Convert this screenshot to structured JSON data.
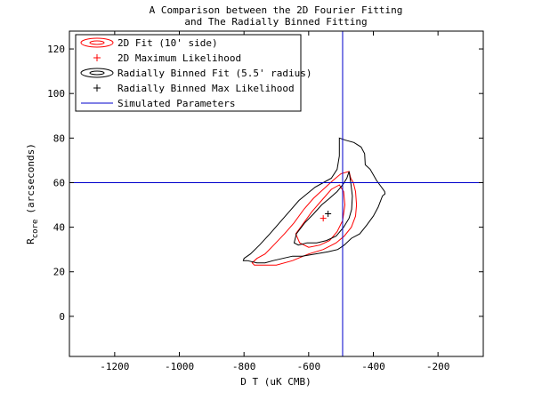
{
  "chart_data": {
    "type": "contour",
    "title": [
      "A Comparison between the 2D Fourier Fitting",
      "and The Radially Binned Fitting"
    ],
    "xlabel": "D T (uK CMB)",
    "ylabel_main": "R",
    "ylabel_sub": "core",
    "ylabel_tail": "(arcseconds)",
    "xlim": [
      -1340,
      -60
    ],
    "ylim": [
      -18,
      128
    ],
    "xticks": [
      -1200,
      -1000,
      -800,
      -600,
      -400,
      -200
    ],
    "yticks": [
      0,
      20,
      40,
      60,
      80,
      100,
      120
    ],
    "grid": false,
    "legend": {
      "placement": "top-left",
      "entries": [
        {
          "label": "2D Fit (10' side)",
          "kind": "ellipses",
          "color": "#ff0000"
        },
        {
          "label": "2D Maximum Likelihood",
          "kind": "plus",
          "color": "#ff0000"
        },
        {
          "label": "Radially Binned Fit (5.5' radius)",
          "kind": "ellipses",
          "color": "#000000"
        },
        {
          "label": "Radially Binned Max Likelihood",
          "kind": "plus",
          "color": "#000000"
        },
        {
          "label": "Simulated Parameters",
          "kind": "line",
          "color": "#0000cc"
        }
      ]
    },
    "simulated_parameters": {
      "dT": -495,
      "r_core": 60
    },
    "max_likelihood_2d": {
      "dT": -555,
      "r_core": 44
    },
    "max_likelihood_radial": {
      "dT": -540,
      "r_core": 46
    },
    "contours": [
      {
        "name": "2D Fit (10' side) outer",
        "color": "#ff0000",
        "points": [
          [
            -470,
            62
          ],
          [
            -475,
            65
          ],
          [
            -500,
            64
          ],
          [
            -525,
            61
          ],
          [
            -555,
            57
          ],
          [
            -585,
            53
          ],
          [
            -615,
            48
          ],
          [
            -645,
            42
          ],
          [
            -675,
            37
          ],
          [
            -708,
            32
          ],
          [
            -735,
            28
          ],
          [
            -760,
            26
          ],
          [
            -775,
            24
          ],
          [
            -768,
            23
          ],
          [
            -740,
            23
          ],
          [
            -700,
            23
          ],
          [
            -650,
            25
          ],
          [
            -600,
            28
          ],
          [
            -555,
            30
          ],
          [
            -515,
            33
          ],
          [
            -490,
            36
          ],
          [
            -468,
            40
          ],
          [
            -455,
            45
          ],
          [
            -452,
            50
          ],
          [
            -455,
            56
          ],
          [
            -462,
            60
          ],
          [
            -470,
            62
          ]
        ]
      },
      {
        "name": "2D Fit (10' side) inner",
        "color": "#ff0000",
        "points": [
          [
            -505,
            59
          ],
          [
            -530,
            57
          ],
          [
            -560,
            52
          ],
          [
            -590,
            47
          ],
          [
            -620,
            41
          ],
          [
            -640,
            37
          ],
          [
            -628,
            33
          ],
          [
            -600,
            31
          ],
          [
            -565,
            32
          ],
          [
            -535,
            34
          ],
          [
            -512,
            38
          ],
          [
            -495,
            43
          ],
          [
            -488,
            50
          ],
          [
            -492,
            56
          ],
          [
            -505,
            59
          ]
        ]
      },
      {
        "name": "Radially Binned Fit (5.5' radius) outer",
        "color": "#000000",
        "points": [
          [
            -505,
            80
          ],
          [
            -485,
            79
          ],
          [
            -460,
            78
          ],
          [
            -438,
            76
          ],
          [
            -427,
            73
          ],
          [
            -425,
            68
          ],
          [
            -410,
            66
          ],
          [
            -390,
            61
          ],
          [
            -375,
            58
          ],
          [
            -365,
            56
          ],
          [
            -364,
            55
          ],
          [
            -372,
            54
          ],
          [
            -385,
            49
          ],
          [
            -400,
            45
          ],
          [
            -420,
            41
          ],
          [
            -442,
            37
          ],
          [
            -468,
            35
          ],
          [
            -490,
            32
          ],
          [
            -510,
            30
          ],
          [
            -540,
            29
          ],
          [
            -580,
            28
          ],
          [
            -620,
            27
          ],
          [
            -650,
            27
          ],
          [
            -680,
            26
          ],
          [
            -710,
            25
          ],
          [
            -735,
            24
          ],
          [
            -760,
            24
          ],
          [
            -790,
            25
          ],
          [
            -802,
            25
          ],
          [
            -800,
            26
          ],
          [
            -780,
            28
          ],
          [
            -752,
            32
          ],
          [
            -720,
            37
          ],
          [
            -690,
            42
          ],
          [
            -660,
            47
          ],
          [
            -630,
            52
          ],
          [
            -605,
            55
          ],
          [
            -580,
            58
          ],
          [
            -555,
            60
          ],
          [
            -530,
            62
          ],
          [
            -512,
            66
          ],
          [
            -505,
            72
          ],
          [
            -505,
            80
          ]
        ]
      },
      {
        "name": "Radially Binned Fit (5.5' radius) inner",
        "color": "#000000",
        "points": [
          [
            -482,
            62
          ],
          [
            -475,
            65
          ],
          [
            -470,
            60
          ],
          [
            -465,
            54
          ],
          [
            -467,
            48
          ],
          [
            -475,
            44
          ],
          [
            -492,
            40
          ],
          [
            -515,
            36
          ],
          [
            -545,
            34
          ],
          [
            -575,
            33
          ],
          [
            -605,
            33
          ],
          [
            -632,
            32
          ],
          [
            -645,
            33
          ],
          [
            -638,
            37
          ],
          [
            -612,
            42
          ],
          [
            -585,
            46
          ],
          [
            -560,
            50
          ],
          [
            -535,
            53
          ],
          [
            -512,
            56
          ],
          [
            -495,
            59
          ],
          [
            -482,
            62
          ]
        ]
      }
    ]
  }
}
